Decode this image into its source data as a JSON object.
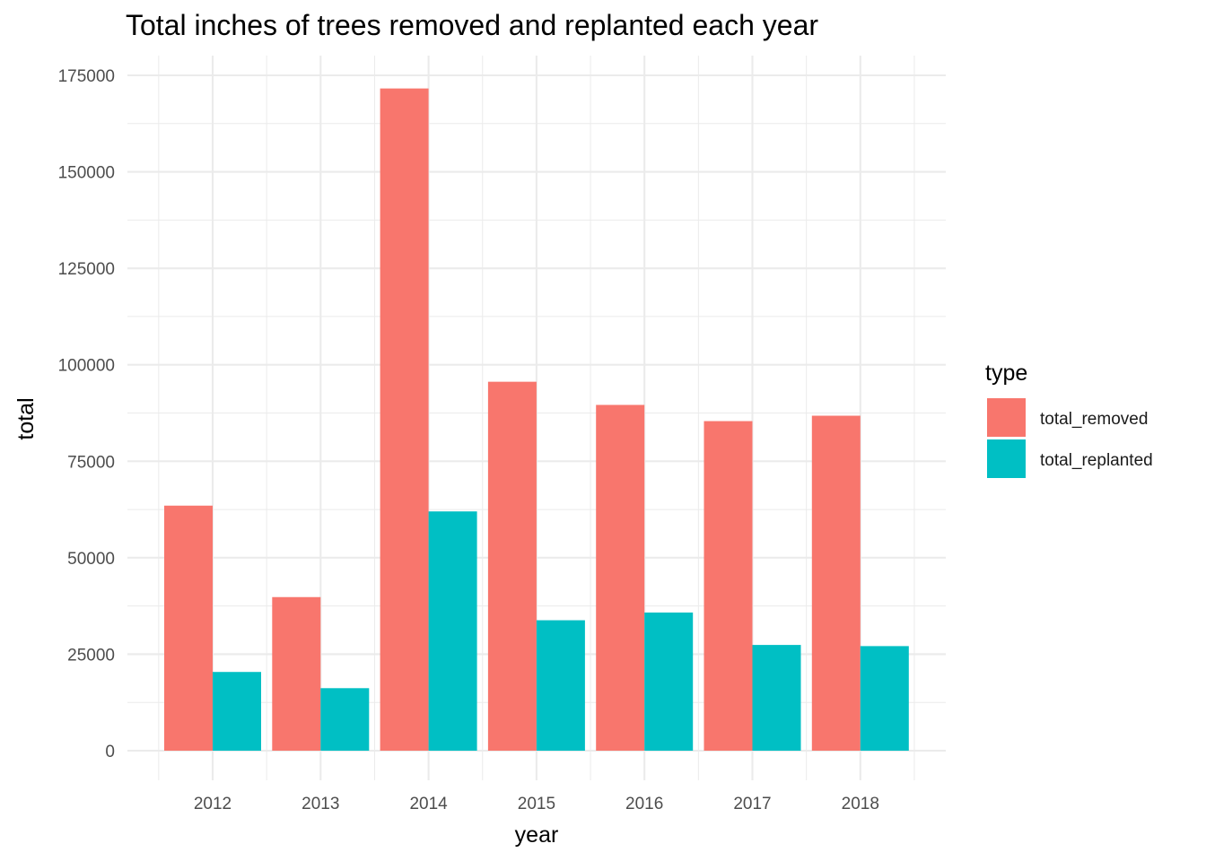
{
  "chart_data": {
    "type": "bar",
    "title": "Total inches of trees removed and replanted each year",
    "xlabel": "year",
    "ylabel": "total",
    "categories": [
      "2012",
      "2013",
      "2014",
      "2015",
      "2016",
      "2017",
      "2018"
    ],
    "series": [
      {
        "name": "total_removed",
        "color": "#F8766D",
        "values": [
          63500,
          39800,
          171600,
          95600,
          89600,
          85400,
          86800
        ]
      },
      {
        "name": "total_replanted",
        "color": "#00BFC4",
        "values": [
          20400,
          16200,
          62000,
          33800,
          35800,
          27400,
          27100
        ]
      }
    ],
    "ylim": [
      0,
      175000
    ],
    "yticks": [
      0,
      25000,
      50000,
      75000,
      100000,
      125000,
      150000,
      175000
    ],
    "ytick_labels": [
      "0",
      "25000",
      "50000",
      "75000",
      "100000",
      "125000",
      "150000",
      "175000"
    ],
    "grid": true,
    "legend": {
      "title": "type",
      "position": "right"
    }
  }
}
